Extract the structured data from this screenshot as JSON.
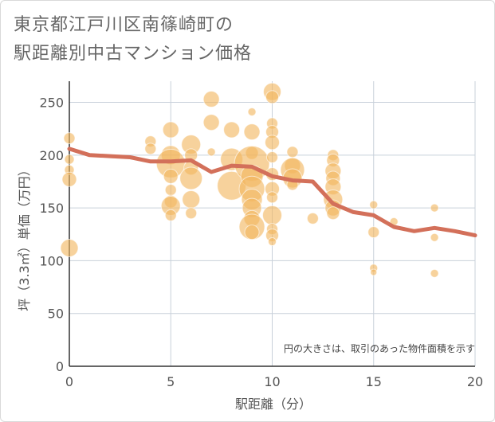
{
  "title_line1": "東京都江戸川区南篠崎町の",
  "title_line2": "駅距離別中古マンション価格",
  "chart_data": {
    "type": "scatter",
    "xlabel": "駅距離（分）",
    "ylabel": "坪（3.3㎡）単価（万円）",
    "note": "円の大きさは、取引のあった物件面積を示す",
    "xlim": [
      0,
      20
    ],
    "ylim": [
      0,
      270
    ],
    "xticks": [
      0,
      5,
      10,
      15,
      20
    ],
    "yticks": [
      0,
      50,
      100,
      150,
      200,
      250
    ],
    "grid": true,
    "colors": {
      "bubble": "#f2b65f",
      "line": "#d3705a",
      "grid": "#c8d0da"
    },
    "bubbles": [
      {
        "x": 0,
        "y": 216,
        "s": 7
      },
      {
        "x": 0,
        "y": 196,
        "s": 6
      },
      {
        "x": 0,
        "y": 186,
        "s": 6
      },
      {
        "x": 0,
        "y": 177,
        "s": 9
      },
      {
        "x": 0,
        "y": 112,
        "s": 11
      },
      {
        "x": 4,
        "y": 213,
        "s": 7
      },
      {
        "x": 4,
        "y": 206,
        "s": 7
      },
      {
        "x": 5,
        "y": 224,
        "s": 10
      },
      {
        "x": 5,
        "y": 200,
        "s": 12
      },
      {
        "x": 5,
        "y": 192,
        "s": 18
      },
      {
        "x": 5,
        "y": 180,
        "s": 9
      },
      {
        "x": 5,
        "y": 167,
        "s": 7
      },
      {
        "x": 5,
        "y": 156,
        "s": 8
      },
      {
        "x": 5,
        "y": 152,
        "s": 12
      },
      {
        "x": 5,
        "y": 143,
        "s": 7
      },
      {
        "x": 6,
        "y": 210,
        "s": 12
      },
      {
        "x": 6,
        "y": 200,
        "s": 8
      },
      {
        "x": 6,
        "y": 188,
        "s": 9
      },
      {
        "x": 6,
        "y": 178,
        "s": 14
      },
      {
        "x": 6,
        "y": 158,
        "s": 11
      },
      {
        "x": 6,
        "y": 145,
        "s": 7
      },
      {
        "x": 7,
        "y": 253,
        "s": 10
      },
      {
        "x": 7,
        "y": 231,
        "s": 10
      },
      {
        "x": 7,
        "y": 203,
        "s": 5
      },
      {
        "x": 8,
        "y": 224,
        "s": 10
      },
      {
        "x": 8,
        "y": 196,
        "s": 14
      },
      {
        "x": 8,
        "y": 171,
        "s": 18
      },
      {
        "x": 9,
        "y": 241,
        "s": 5
      },
      {
        "x": 9,
        "y": 222,
        "s": 10
      },
      {
        "x": 9,
        "y": 202,
        "s": 8
      },
      {
        "x": 9,
        "y": 192,
        "s": 22
      },
      {
        "x": 9,
        "y": 180,
        "s": 14
      },
      {
        "x": 9,
        "y": 168,
        "s": 16
      },
      {
        "x": 9,
        "y": 158,
        "s": 13
      },
      {
        "x": 9,
        "y": 150,
        "s": 12
      },
      {
        "x": 9,
        "y": 140,
        "s": 10
      },
      {
        "x": 9,
        "y": 132,
        "s": 16
      },
      {
        "x": 9,
        "y": 127,
        "s": 9
      },
      {
        "x": 10,
        "y": 260,
        "s": 11
      },
      {
        "x": 10,
        "y": 255,
        "s": 8
      },
      {
        "x": 10,
        "y": 230,
        "s": 7
      },
      {
        "x": 10,
        "y": 222,
        "s": 8
      },
      {
        "x": 10,
        "y": 212,
        "s": 9
      },
      {
        "x": 10,
        "y": 198,
        "s": 7
      },
      {
        "x": 10,
        "y": 182,
        "s": 8
      },
      {
        "x": 10,
        "y": 168,
        "s": 9
      },
      {
        "x": 10,
        "y": 160,
        "s": 7
      },
      {
        "x": 10,
        "y": 143,
        "s": 12
      },
      {
        "x": 10,
        "y": 130,
        "s": 7
      },
      {
        "x": 10,
        "y": 124,
        "s": 8
      },
      {
        "x": 10,
        "y": 118,
        "s": 5
      },
      {
        "x": 11,
        "y": 203,
        "s": 7
      },
      {
        "x": 11,
        "y": 190,
        "s": 10
      },
      {
        "x": 11,
        "y": 186,
        "s": 15
      },
      {
        "x": 11,
        "y": 178,
        "s": 12
      },
      {
        "x": 11,
        "y": 172,
        "s": 7
      },
      {
        "x": 12,
        "y": 140,
        "s": 7
      },
      {
        "x": 13,
        "y": 200,
        "s": 7
      },
      {
        "x": 13,
        "y": 195,
        "s": 8
      },
      {
        "x": 13,
        "y": 185,
        "s": 10
      },
      {
        "x": 13,
        "y": 178,
        "s": 9
      },
      {
        "x": 13,
        "y": 170,
        "s": 10
      },
      {
        "x": 13,
        "y": 158,
        "s": 12
      },
      {
        "x": 13,
        "y": 150,
        "s": 10
      },
      {
        "x": 13,
        "y": 145,
        "s": 8
      },
      {
        "x": 15,
        "y": 153,
        "s": 5
      },
      {
        "x": 15,
        "y": 127,
        "s": 7
      },
      {
        "x": 15,
        "y": 93,
        "s": 5
      },
      {
        "x": 15,
        "y": 89,
        "s": 4
      },
      {
        "x": 16,
        "y": 137,
        "s": 5
      },
      {
        "x": 18,
        "y": 150,
        "s": 5
      },
      {
        "x": 18,
        "y": 122,
        "s": 5
      },
      {
        "x": 18,
        "y": 88,
        "s": 5
      }
    ],
    "trend": {
      "x": [
        0,
        1,
        2,
        3,
        4,
        5,
        6,
        7,
        8,
        9,
        10,
        11,
        12,
        13,
        14,
        15,
        16,
        17,
        18,
        19,
        20
      ],
      "y": [
        206,
        200,
        199,
        198,
        194,
        194,
        195,
        184,
        190,
        189,
        180,
        176,
        175,
        154,
        146,
        143,
        132,
        128,
        131,
        128,
        124
      ]
    }
  }
}
